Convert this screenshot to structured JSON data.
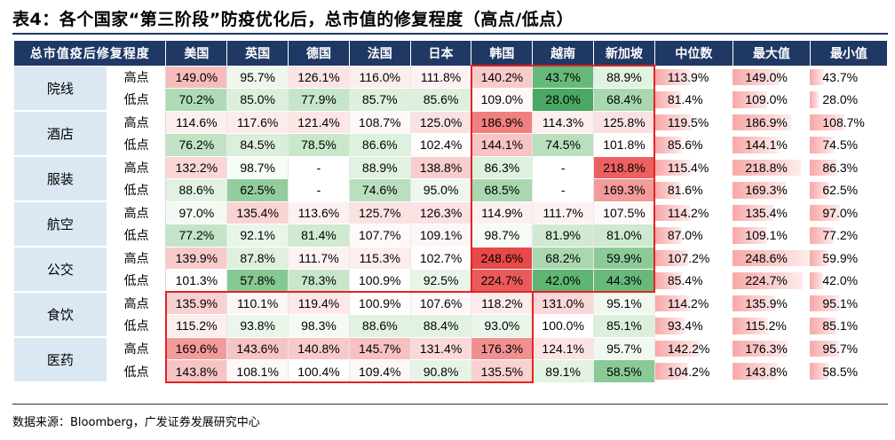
{
  "title": "表4：各个国家“第三阶段”防疫优化后，总市值的修复程度（高点/低点）",
  "source": "数据来源：Bloomberg，广发证券发展研究中心",
  "header": {
    "corner": "总市值疫后修复程度",
    "countries": [
      "美国",
      "英国",
      "德国",
      "法国",
      "日本",
      "韩国",
      "越南",
      "新加坡"
    ],
    "stats": [
      "中位数",
      "最大值",
      "最小值"
    ]
  },
  "colors": {
    "header_bg": "#1f3864",
    "category_bg": "#dbe8f4",
    "highlight_box": "#e02424",
    "bar_fill": "#f8a8a8"
  },
  "rows": [
    {
      "category": "院线",
      "point": "高点",
      "values": [
        "149.0%",
        "95.7%",
        "126.1%",
        "116.0%",
        "111.8%",
        "140.2%",
        "43.7%",
        "88.9%"
      ],
      "colors": [
        "#f6bcbc",
        "#eef6ee",
        "#fbe4e4",
        "#fdeeee",
        "#fdf1f1",
        "#f8cbcb",
        "#67b97a",
        "#e2f2e2"
      ],
      "median": "113.9%",
      "max": "149.0%",
      "min": "43.7%",
      "median_bar": 0.46,
      "max_bar": 0.6,
      "min_bar": 0.18
    },
    {
      "category": "院线",
      "point": "低点",
      "values": [
        "70.2%",
        "85.0%",
        "77.9%",
        "85.7%",
        "85.6%",
        "109.0%",
        "28.0%",
        "68.4%"
      ],
      "colors": [
        "#aedbb4",
        "#dcefdc",
        "#c6e6c9",
        "#ddefdd",
        "#ddefdd",
        "#fdf7f7",
        "#4aa862",
        "#a9d8b0"
      ],
      "median": "81.4%",
      "max": "109.0%",
      "min": "28.0%",
      "median_bar": 0.33,
      "max_bar": 0.44,
      "min_bar": 0.11
    },
    {
      "category": "酒店",
      "point": "高点",
      "values": [
        "114.6%",
        "117.6%",
        "121.4%",
        "108.7%",
        "125.0%",
        "186.9%",
        "114.3%",
        "125.8%"
      ],
      "colors": [
        "#fdefef",
        "#fdeaea",
        "#fce6e6",
        "#fdf7f7",
        "#fbe2e2",
        "#f08080",
        "#fdefef",
        "#fbe2e2"
      ],
      "median": "119.5%",
      "max": "186.9%",
      "min": "108.7%",
      "median_bar": 0.48,
      "max_bar": 0.75,
      "min_bar": 0.44
    },
    {
      "category": "酒店",
      "point": "低点",
      "values": [
        "76.2%",
        "84.5%",
        "78.5%",
        "86.6%",
        "102.4%",
        "144.1%",
        "74.5%",
        "101.8%"
      ],
      "colors": [
        "#c0e3c4",
        "#dbeedb",
        "#c8e7cb",
        "#def0de",
        "#fefcfc",
        "#f7c3c3",
        "#badfbe",
        "#fefcfc"
      ],
      "median": "85.6%",
      "max": "144.1%",
      "min": "74.5%",
      "median_bar": 0.34,
      "max_bar": 0.58,
      "min_bar": 0.3
    },
    {
      "category": "服装",
      "point": "高点",
      "values": [
        "132.2%",
        "98.7%",
        "-",
        "88.9%",
        "138.8%",
        "86.3%",
        "-",
        "218.8%"
      ],
      "colors": [
        "#fad6d6",
        "#f6fbf6",
        "#ffffff",
        "#e2f2e2",
        "#f8cdcd",
        "#def0de",
        "#ffffff",
        "#ec6060"
      ],
      "median": "115.4%",
      "max": "218.8%",
      "min": "86.3%",
      "median_bar": 0.46,
      "max_bar": 0.88,
      "min_bar": 0.35
    },
    {
      "category": "服装",
      "point": "低点",
      "values": [
        "88.6%",
        "62.5%",
        "-",
        "74.6%",
        "95.0%",
        "68.5%",
        "-",
        "169.3%"
      ],
      "colors": [
        "#e2f2e2",
        "#93cd9d",
        "#ffffff",
        "#badfbe",
        "#eef6ee",
        "#a9d8b0",
        "#ffffff",
        "#f29b9b"
      ],
      "median": "81.6%",
      "max": "169.3%",
      "min": "62.5%",
      "median_bar": 0.33,
      "max_bar": 0.68,
      "min_bar": 0.25
    },
    {
      "category": "航空",
      "point": "高点",
      "values": [
        "97.0%",
        "135.4%",
        "113.6%",
        "125.7%",
        "126.3%",
        "114.9%",
        "111.7%",
        "107.5%"
      ],
      "colors": [
        "#f3f9f3",
        "#f9d2d2",
        "#fdf0f0",
        "#fbe2e2",
        "#fbe1e1",
        "#fdefef",
        "#fdf2f2",
        "#fef8f8"
      ],
      "median": "114.2%",
      "max": "135.4%",
      "min": "97.0%",
      "median_bar": 0.46,
      "max_bar": 0.54,
      "min_bar": 0.39
    },
    {
      "category": "航空",
      "point": "低点",
      "values": [
        "77.2%",
        "92.1%",
        "81.4%",
        "107.7%",
        "109.1%",
        "98.7%",
        "81.9%",
        "81.0%"
      ],
      "colors": [
        "#c3e4c6",
        "#e8f5e8",
        "#cfeacf",
        "#fef8f8",
        "#fdf6f6",
        "#f6fbf6",
        "#d0ead1",
        "#cee9cf"
      ],
      "median": "87.0%",
      "max": "109.1%",
      "min": "77.2%",
      "median_bar": 0.35,
      "max_bar": 0.44,
      "min_bar": 0.31
    },
    {
      "category": "公交",
      "point": "高点",
      "values": [
        "139.9%",
        "87.8%",
        "111.7%",
        "115.3%",
        "102.7%",
        "248.6%",
        "68.2%",
        "59.9%"
      ],
      "colors": [
        "#f8cbcb",
        "#dff0df",
        "#fdf2f2",
        "#fdeeee",
        "#fefcfc",
        "#e84848",
        "#a9d8b0",
        "#8ccb98"
      ],
      "median": "107.2%",
      "max": "248.6%",
      "min": "59.9%",
      "median_bar": 0.43,
      "max_bar": 1.0,
      "min_bar": 0.24
    },
    {
      "category": "公交",
      "point": "低点",
      "values": [
        "101.3%",
        "57.8%",
        "78.3%",
        "100.9%",
        "92.5%",
        "224.7%",
        "42.0%",
        "44.3%"
      ],
      "colors": [
        "#fefdfd",
        "#86c892",
        "#c7e6ca",
        "#fefefe",
        "#e9f5e9",
        "#eb5a5a",
        "#5fb573",
        "#68ba7b"
      ],
      "median": "85.4%",
      "max": "224.7%",
      "min": "42.0%",
      "median_bar": 0.34,
      "max_bar": 0.9,
      "min_bar": 0.17
    },
    {
      "category": "食饮",
      "point": "高点",
      "values": [
        "135.9%",
        "110.1%",
        "119.4%",
        "100.9%",
        "107.6%",
        "118.2%",
        "131.0%",
        "95.1%"
      ],
      "colors": [
        "#f9d1d1",
        "#fdf4f4",
        "#fce8e8",
        "#fefefe",
        "#fef8f8",
        "#fdeaea",
        "#fad8d8",
        "#eff7ef"
      ],
      "median": "114.2%",
      "max": "135.9%",
      "min": "95.1%",
      "median_bar": 0.46,
      "max_bar": 0.55,
      "min_bar": 0.38
    },
    {
      "category": "食饮",
      "point": "低点",
      "values": [
        "115.2%",
        "93.8%",
        "98.3%",
        "88.6%",
        "88.4%",
        "93.0%",
        "100.0%",
        "85.1%"
      ],
      "colors": [
        "#fdeeee",
        "#ebf6eb",
        "#f5faf5",
        "#e2f2e2",
        "#e2f2e2",
        "#eaf5ea",
        "#ffffff",
        "#dcefdc"
      ],
      "median": "93.4%",
      "max": "115.2%",
      "min": "85.1%",
      "median_bar": 0.38,
      "max_bar": 0.46,
      "min_bar": 0.34
    },
    {
      "category": "医药",
      "point": "高点",
      "values": [
        "169.6%",
        "143.6%",
        "140.8%",
        "145.7%",
        "131.4%",
        "176.3%",
        "124.1%",
        "95.7%"
      ],
      "colors": [
        "#f29b9b",
        "#f7c4c4",
        "#f8c9c9",
        "#f7c1c1",
        "#fad8d8",
        "#f18f8f",
        "#fbe3e3",
        "#f0f8f0"
      ],
      "median": "142.2%",
      "max": "176.3%",
      "min": "95.7%",
      "median_bar": 0.57,
      "max_bar": 0.71,
      "min_bar": 0.38
    },
    {
      "category": "医药",
      "point": "低点",
      "values": [
        "143.8%",
        "108.1%",
        "100.4%",
        "109.4%",
        "90.8%",
        "135.5%",
        "89.1%",
        "58.5%"
      ],
      "colors": [
        "#f7c4c4",
        "#fef7f7",
        "#ffffff",
        "#fdf6f6",
        "#e6f4e6",
        "#f9d1d1",
        "#e3f2e3",
        "#89ca95"
      ],
      "median": "104.2%",
      "max": "143.8%",
      "min": "58.5%",
      "median_bar": 0.42,
      "max_bar": 0.58,
      "min_bar": 0.24
    }
  ],
  "highlights": [
    {
      "label": "韩国院线至公交",
      "rows": [
        0,
        9
      ],
      "cols": [
        5,
        7
      ]
    },
    {
      "label": "食饮医药欧美日韩",
      "rows": [
        10,
        13
      ],
      "cols": [
        0,
        5
      ]
    }
  ]
}
